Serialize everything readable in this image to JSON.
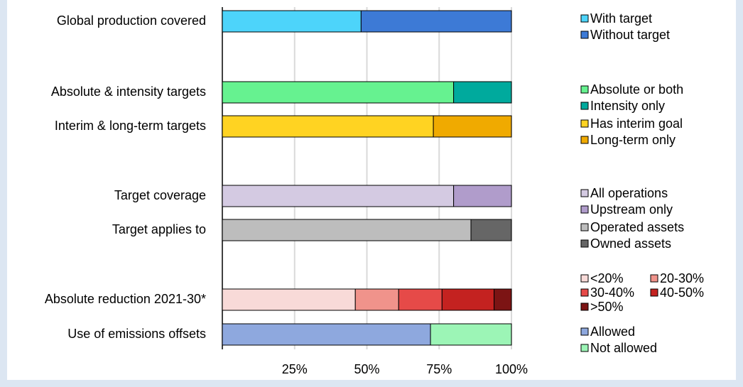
{
  "chart_data": {
    "type": "bar",
    "orientation": "horizontal",
    "stacked": true,
    "categories": [
      "Global production covered",
      "Absolute & intensity targets",
      "Interim & long-term targets",
      "Target coverage",
      "Target applies to",
      "Absolute reduction 2021-30*",
      "Use of emissions offsets"
    ],
    "series": [
      {
        "name": "With target",
        "color": "#4dd4fa",
        "values": [
          48,
          null,
          null,
          null,
          null,
          null,
          null
        ]
      },
      {
        "name": "Without target",
        "color": "#3d7ad6",
        "values": [
          52,
          null,
          null,
          null,
          null,
          null,
          null
        ]
      },
      {
        "name": "Absolute or both",
        "color": "#66f290",
        "values": [
          null,
          80,
          null,
          null,
          null,
          null,
          null
        ]
      },
      {
        "name": "Intensity only",
        "color": "#00aa9d",
        "values": [
          null,
          20,
          null,
          null,
          null,
          null,
          null
        ]
      },
      {
        "name": "Has interim goal",
        "color": "#ffd322",
        "values": [
          null,
          null,
          73,
          null,
          null,
          null,
          null
        ]
      },
      {
        "name": "Long-term only",
        "color": "#f0aa00",
        "values": [
          null,
          null,
          27,
          null,
          null,
          null,
          null
        ]
      },
      {
        "name": "All operations",
        "color": "#d4cae2",
        "values": [
          null,
          null,
          null,
          80,
          null,
          null,
          null
        ]
      },
      {
        "name": "Upstream only",
        "color": "#b09ccb",
        "values": [
          null,
          null,
          null,
          20,
          null,
          null,
          null
        ]
      },
      {
        "name": "Operated assets",
        "color": "#bdbdbd",
        "values": [
          null,
          null,
          null,
          null,
          86,
          null,
          null
        ]
      },
      {
        "name": "Owned assets",
        "color": "#666666",
        "values": [
          null,
          null,
          null,
          null,
          14,
          null,
          null
        ]
      },
      {
        "name": "<20%",
        "color": "#f8dad8",
        "values": [
          null,
          null,
          null,
          null,
          null,
          46,
          null
        ]
      },
      {
        "name": "20-30%",
        "color": "#f0938b",
        "values": [
          null,
          null,
          null,
          null,
          null,
          15,
          null
        ]
      },
      {
        "name": "30-40%",
        "color": "#e64a48",
        "values": [
          null,
          null,
          null,
          null,
          null,
          15,
          null
        ]
      },
      {
        "name": "40-50%",
        "color": "#c42220",
        "values": [
          null,
          null,
          null,
          null,
          null,
          18,
          null
        ]
      },
      {
        "name": ">50%",
        "color": "#7c1414",
        "values": [
          null,
          null,
          null,
          null,
          null,
          6,
          null
        ]
      },
      {
        "name": "Allowed",
        "color": "#8ea8de",
        "values": [
          null,
          null,
          null,
          null,
          null,
          null,
          72
        ]
      },
      {
        "name": "Not allowed",
        "color": "#9cf5b6",
        "values": [
          null,
          null,
          null,
          null,
          null,
          null,
          28
        ]
      }
    ],
    "xlim": [
      0,
      100
    ],
    "xticks": [
      {
        "value": 25,
        "label": "25%"
      },
      {
        "value": 50,
        "label": "50%"
      },
      {
        "value": 75,
        "label": "75%"
      },
      {
        "value": 100,
        "label": "100%"
      }
    ],
    "grid": true
  }
}
